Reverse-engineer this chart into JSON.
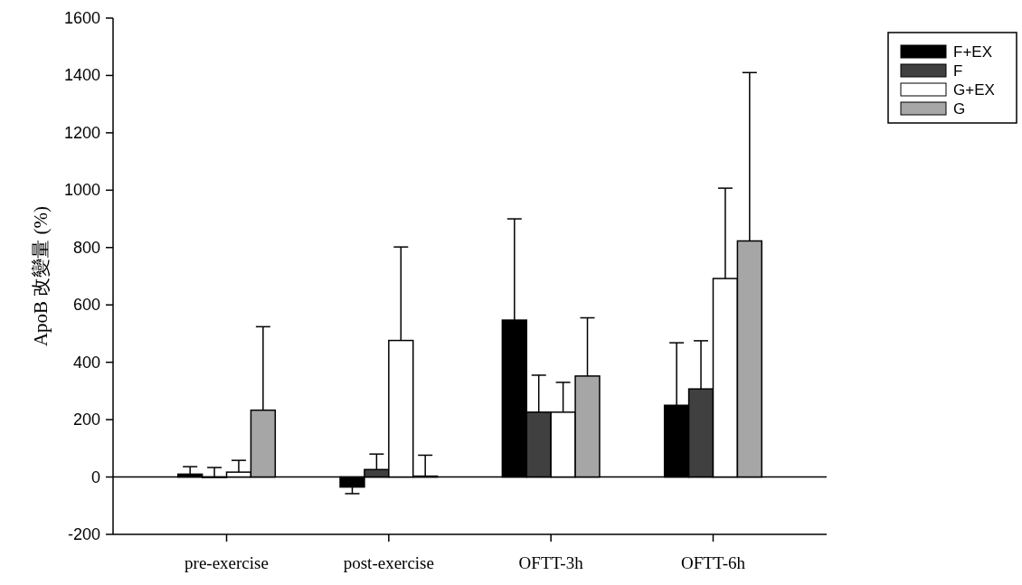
{
  "chart_data": {
    "type": "bar",
    "ylabel": "ApoB 改變量 (%)",
    "categories": [
      "pre-exercise",
      "post-exercise",
      "OFTT-3h",
      "OFTT-6h"
    ],
    "series": [
      {
        "name": "F+EX",
        "color": "#000000",
        "values": [
          10,
          -35,
          547,
          250
        ],
        "errors": [
          [
            10,
            36
          ],
          [
            -58,
            -35
          ],
          [
            547,
            900
          ],
          [
            250,
            468
          ]
        ]
      },
      {
        "name": "F",
        "color": "#404040",
        "values": [
          0,
          26,
          226,
          307
        ],
        "errors": [
          [
            0,
            33
          ],
          [
            26,
            80
          ],
          [
            226,
            355
          ],
          [
            307,
            475
          ]
        ]
      },
      {
        "name": "G+EX",
        "color": "#ffffff",
        "values": [
          17,
          476,
          226,
          692
        ],
        "errors": [
          [
            17,
            58
          ],
          [
            476,
            802
          ],
          [
            226,
            330
          ],
          [
            692,
            1007
          ]
        ]
      },
      {
        "name": "G",
        "color": "#a6a6a6",
        "values": [
          233,
          3,
          352,
          823
        ],
        "errors": [
          [
            233,
            524
          ],
          [
            3,
            76
          ],
          [
            352,
            555
          ],
          [
            823,
            1410
          ]
        ]
      }
    ],
    "ylim": [
      -200,
      1600
    ],
    "yticks": [
      -200,
      0,
      200,
      400,
      600,
      800,
      1000,
      1200,
      1400,
      1600
    ],
    "ref_lines": [
      {
        "axis": "y",
        "value": 0
      }
    ],
    "legend": "top right"
  }
}
